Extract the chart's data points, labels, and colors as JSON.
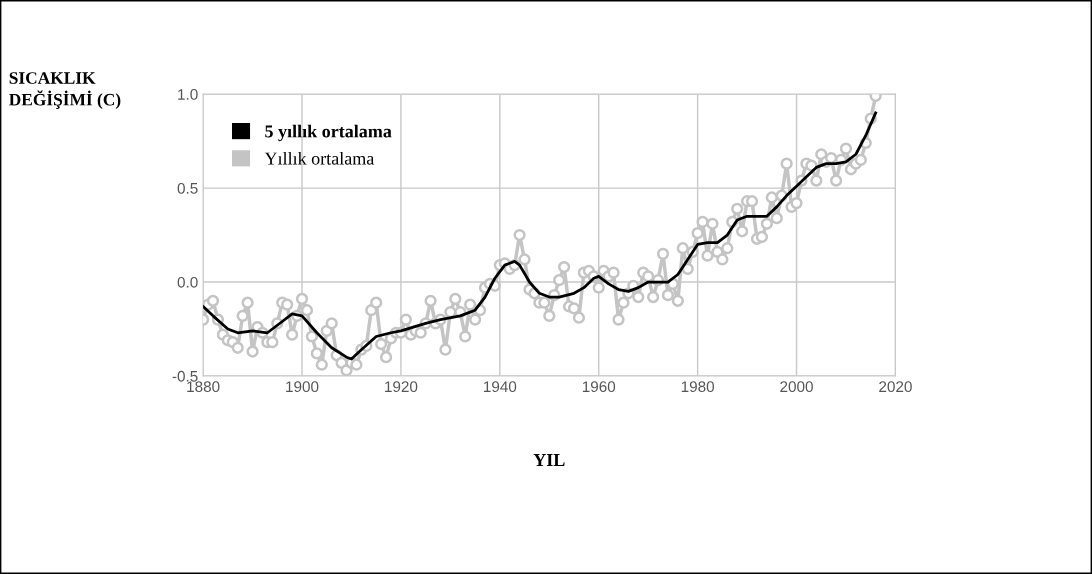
{
  "chart_data": {
    "type": "line",
    "ylabel": "SICAKLIK\nDEĞİŞİMİ (C)",
    "xlabel": "YIL",
    "xlim": [
      1880,
      2020
    ],
    "xticks": [
      1880,
      1900,
      1920,
      1940,
      1960,
      1980,
      2000,
      2020
    ],
    "ylim": [
      -0.5,
      1.0
    ],
    "yticks": [
      {
        "value": -0.5,
        "label": "-0.5"
      },
      {
        "value": 0.0,
        "label": "0.0"
      },
      {
        "value": 0.5,
        "label": "0.5"
      },
      {
        "value": 1.0,
        "label": "1.0"
      }
    ],
    "grid": true,
    "legend": "top left",
    "series": [
      {
        "name": "Yıllık ortalama",
        "color": "#c4c4c4",
        "marker": "circle",
        "x": [
          1880,
          1881,
          1882,
          1883,
          1884,
          1885,
          1886,
          1887,
          1888,
          1889,
          1890,
          1891,
          1892,
          1893,
          1894,
          1895,
          1896,
          1897,
          1898,
          1899,
          1900,
          1901,
          1902,
          1903,
          1904,
          1905,
          1906,
          1907,
          1908,
          1909,
          1910,
          1911,
          1912,
          1913,
          1914,
          1915,
          1916,
          1917,
          1918,
          1919,
          1920,
          1921,
          1922,
          1923,
          1924,
          1925,
          1926,
          1927,
          1928,
          1929,
          1930,
          1931,
          1932,
          1933,
          1934,
          1935,
          1936,
          1937,
          1938,
          1939,
          1940,
          1941,
          1942,
          1943,
          1944,
          1945,
          1946,
          1947,
          1948,
          1949,
          1950,
          1951,
          1952,
          1953,
          1954,
          1955,
          1956,
          1957,
          1958,
          1959,
          1960,
          1961,
          1962,
          1963,
          1964,
          1965,
          1966,
          1967,
          1968,
          1969,
          1970,
          1971,
          1972,
          1973,
          1974,
          1975,
          1976,
          1977,
          1978,
          1979,
          1980,
          1981,
          1982,
          1983,
          1984,
          1985,
          1986,
          1987,
          1988,
          1989,
          1990,
          1991,
          1992,
          1993,
          1994,
          1995,
          1996,
          1997,
          1998,
          1999,
          2000,
          2001,
          2002,
          2003,
          2004,
          2005,
          2006,
          2007,
          2008,
          2009,
          2010,
          2011,
          2012,
          2013,
          2014,
          2015,
          2016
        ],
        "values": [
          -0.2,
          -0.12,
          -0.1,
          -0.2,
          -0.28,
          -0.31,
          -0.32,
          -0.35,
          -0.18,
          -0.11,
          -0.37,
          -0.24,
          -0.27,
          -0.32,
          -0.32,
          -0.22,
          -0.11,
          -0.12,
          -0.28,
          -0.18,
          -0.09,
          -0.15,
          -0.29,
          -0.38,
          -0.44,
          -0.26,
          -0.22,
          -0.39,
          -0.43,
          -0.47,
          -0.43,
          -0.44,
          -0.36,
          -0.34,
          -0.15,
          -0.11,
          -0.33,
          -0.4,
          -0.3,
          -0.27,
          -0.27,
          -0.2,
          -0.28,
          -0.26,
          -0.27,
          -0.22,
          -0.1,
          -0.22,
          -0.2,
          -0.36,
          -0.16,
          -0.09,
          -0.16,
          -0.29,
          -0.12,
          -0.2,
          -0.15,
          -0.03,
          -0.01,
          -0.02,
          0.09,
          0.1,
          0.07,
          0.09,
          0.25,
          0.12,
          -0.04,
          -0.06,
          -0.11,
          -0.11,
          -0.18,
          -0.07,
          0.01,
          0.08,
          -0.13,
          -0.14,
          -0.19,
          0.05,
          0.06,
          0.03,
          -0.03,
          0.06,
          0.03,
          0.05,
          -0.2,
          -0.11,
          -0.06,
          -0.02,
          -0.08,
          0.05,
          0.03,
          -0.08,
          0.01,
          0.15,
          -0.07,
          -0.01,
          -0.1,
          0.18,
          0.07,
          0.16,
          0.26,
          0.32,
          0.14,
          0.31,
          0.16,
          0.12,
          0.18,
          0.32,
          0.39,
          0.27,
          0.43,
          0.43,
          0.23,
          0.24,
          0.31,
          0.45,
          0.34,
          0.46,
          0.63,
          0.4,
          0.42,
          0.54,
          0.63,
          0.62,
          0.54,
          0.68,
          0.64,
          0.66,
          0.54,
          0.65,
          0.71,
          0.6,
          0.63,
          0.65,
          0.74,
          0.87,
          0.99
        ]
      },
      {
        "name": "5 yıllık ortalama",
        "color": "#000000",
        "marker": "none",
        "x": [
          1880,
          1882,
          1885,
          1887,
          1890,
          1893,
          1896,
          1898,
          1900,
          1903,
          1906,
          1909,
          1910,
          1912,
          1915,
          1918,
          1920,
          1925,
          1928,
          1932,
          1935,
          1937,
          1939,
          1941,
          1943,
          1944,
          1946,
          1948,
          1950,
          1952,
          1955,
          1957,
          1959,
          1960,
          1962,
          1964,
          1966,
          1968,
          1970,
          1972,
          1974,
          1976,
          1978,
          1980,
          1982,
          1984,
          1986,
          1988,
          1990,
          1992,
          1994,
          1996,
          1998,
          2000,
          2002,
          2004,
          2006,
          2008,
          2010,
          2012,
          2014,
          2016
        ],
        "values": [
          -0.13,
          -0.18,
          -0.25,
          -0.27,
          -0.26,
          -0.27,
          -0.21,
          -0.17,
          -0.18,
          -0.27,
          -0.35,
          -0.4,
          -0.41,
          -0.36,
          -0.29,
          -0.27,
          -0.26,
          -0.22,
          -0.2,
          -0.18,
          -0.15,
          -0.08,
          0.02,
          0.09,
          0.11,
          0.09,
          0.0,
          -0.06,
          -0.08,
          -0.08,
          -0.06,
          -0.03,
          0.02,
          0.03,
          -0.01,
          -0.04,
          -0.05,
          -0.03,
          0.0,
          0.0,
          0.0,
          0.04,
          0.12,
          0.2,
          0.21,
          0.21,
          0.25,
          0.33,
          0.35,
          0.35,
          0.35,
          0.4,
          0.46,
          0.51,
          0.56,
          0.61,
          0.63,
          0.63,
          0.64,
          0.68,
          0.78,
          0.9
        ]
      }
    ]
  }
}
